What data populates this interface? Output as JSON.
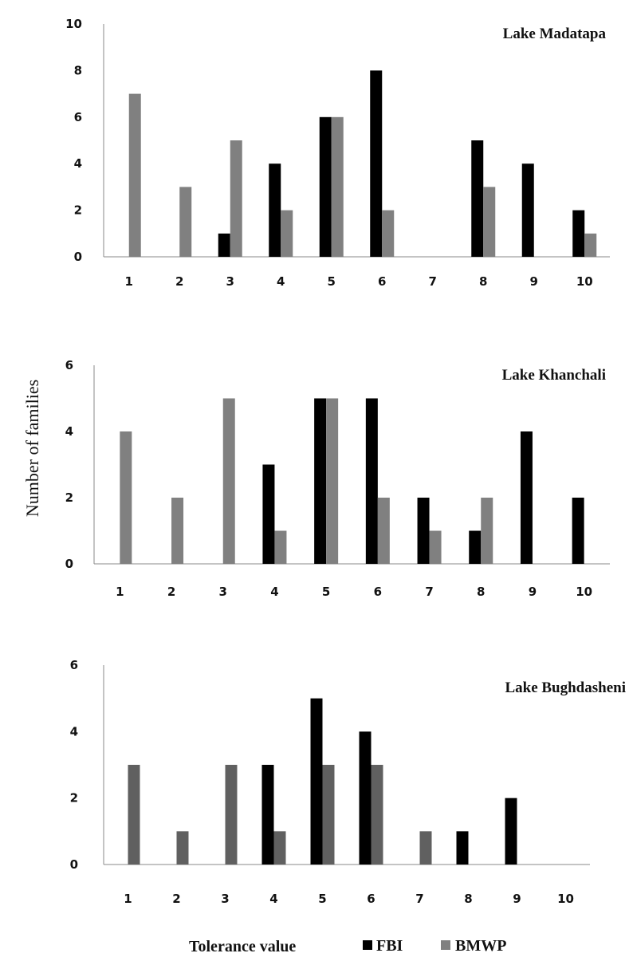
{
  "chart_data": [
    {
      "type": "bar",
      "title": "Lake Madatapa",
      "categories": [
        "1",
        "2",
        "3",
        "4",
        "5",
        "6",
        "7",
        "8",
        "9",
        "10"
      ],
      "ylim": [
        0,
        10
      ],
      "yticks": [
        "0",
        "2",
        "4",
        "6",
        "8",
        "10"
      ],
      "series": [
        {
          "name": "FBI",
          "color": "#000000",
          "values": [
            0,
            0,
            1,
            4,
            6,
            8,
            0,
            5,
            4,
            2
          ]
        },
        {
          "name": "BMWP",
          "color": "#808080",
          "values": [
            7,
            3,
            5,
            2,
            6,
            2,
            0,
            3,
            0,
            1
          ]
        }
      ]
    },
    {
      "type": "bar",
      "title": "Lake Khanchali",
      "categories": [
        "1",
        "2",
        "3",
        "4",
        "5",
        "6",
        "7",
        "8",
        "9",
        "10"
      ],
      "ylim": [
        0,
        6
      ],
      "yticks": [
        "0",
        "2",
        "4",
        "6"
      ],
      "series": [
        {
          "name": "FBI",
          "color": "#000000",
          "values": [
            0,
            0,
            0,
            3,
            5,
            5,
            2,
            1,
            4,
            2
          ]
        },
        {
          "name": "BMWP",
          "color": "#808080",
          "values": [
            4,
            2,
            5,
            1,
            5,
            2,
            1,
            2,
            0,
            0
          ]
        }
      ]
    },
    {
      "type": "bar",
      "title": "Lake Bughdasheni",
      "categories": [
        "1",
        "2",
        "3",
        "4",
        "5",
        "6",
        "7",
        "8",
        "9",
        "10"
      ],
      "ylim": [
        0,
        6
      ],
      "yticks": [
        "0",
        "2",
        "4",
        "6"
      ],
      "series": [
        {
          "name": "FBI",
          "color": "#000000",
          "values": [
            0,
            0,
            0,
            3,
            5,
            4,
            0,
            1,
            2,
            0
          ]
        },
        {
          "name": "BMWP",
          "color": "#606060",
          "values": [
            3,
            1,
            3,
            1,
            3,
            3,
            1,
            0,
            0,
            0
          ]
        }
      ]
    }
  ],
  "ylabel": "Number of families",
  "xlabel": "Tolerance value",
  "legend": [
    {
      "label": "FBI",
      "color": "#000000"
    },
    {
      "label": "BMWP",
      "color": "#808080"
    }
  ]
}
